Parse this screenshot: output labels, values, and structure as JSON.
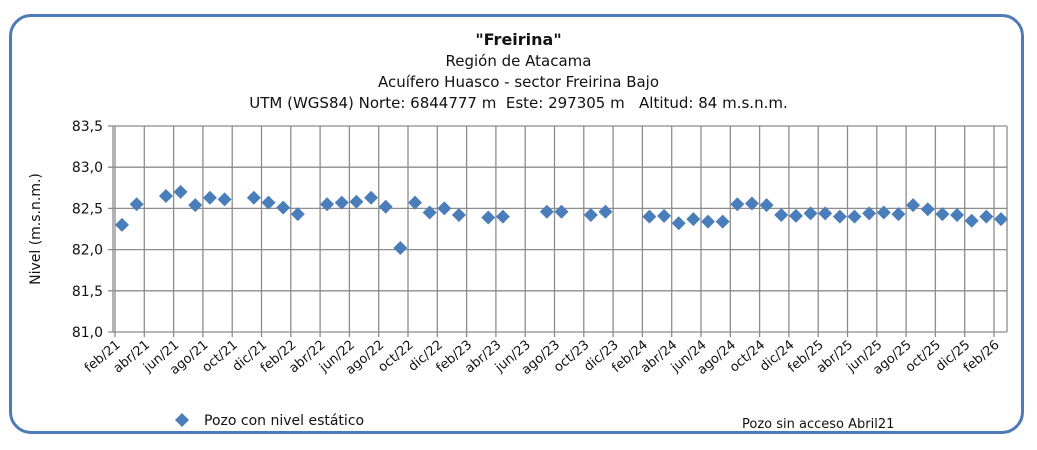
{
  "chart_data": {
    "type": "scatter",
    "title": "\"Freirina\"",
    "subtitles": [
      "Región de Atacama",
      "Acuífero Huasco - sector Freirina Bajo",
      "UTM (WGS84) Norte: 6844777 m  Este: 297305 m   Altitud: 84 m.s.n.m."
    ],
    "ylabel": "Nivel (m.s.n.m.)",
    "ylim": [
      81.0,
      83.5
    ],
    "yticks": [
      "81,0",
      "81,5",
      "82,0",
      "82,5",
      "83,0",
      "83,5"
    ],
    "xticks": [
      "feb/21",
      "abr/21",
      "jun/21",
      "ago/21",
      "oct/21",
      "dic/21",
      "feb/22",
      "abr/22",
      "jun/22",
      "ago/22",
      "oct/22",
      "dic/22",
      "feb/23",
      "abr/23",
      "jun/23",
      "ago/23",
      "oct/23",
      "dic/23",
      "feb/24",
      "abr/24",
      "jun/24",
      "ago/24",
      "oct/24",
      "dic/24",
      "feb/25",
      "abr/25",
      "jun/25",
      "ago/25",
      "oct/25",
      "dic/25",
      "feb/26"
    ],
    "grid": true,
    "color": "#4a7ebb",
    "series": [
      {
        "name": "Pozo con nivel estático",
        "x_month_index": [
          0,
          1,
          3,
          4,
          5,
          6,
          7,
          9,
          10,
          11,
          12,
          14,
          15,
          16,
          17,
          18,
          19,
          20,
          21,
          22,
          23,
          25,
          26,
          29,
          30,
          32,
          33,
          36,
          37,
          38,
          39,
          40,
          41,
          42,
          43,
          44,
          45,
          46,
          47,
          48,
          49,
          50,
          51,
          52,
          53,
          54,
          55,
          56,
          57,
          58,
          59,
          60
        ],
        "values": [
          82.3,
          82.55,
          82.65,
          82.7,
          82.54,
          82.63,
          82.61,
          82.63,
          82.57,
          82.51,
          82.43,
          82.55,
          82.57,
          82.58,
          82.63,
          82.52,
          82.02,
          82.57,
          82.45,
          82.5,
          82.42,
          82.39,
          82.4,
          82.46,
          82.46,
          82.42,
          82.46,
          82.4,
          82.41,
          82.32,
          82.37,
          82.34,
          82.34,
          82.55,
          82.56,
          82.54,
          82.42,
          82.41,
          82.44,
          82.44,
          82.4,
          82.4,
          82.44,
          82.45,
          82.43,
          82.54,
          82.49,
          82.43,
          82.42,
          82.35,
          82.4,
          82.37
        ]
      }
    ],
    "legend": "bottom-left",
    "note": "Pozo sin acceso  Abril21"
  }
}
